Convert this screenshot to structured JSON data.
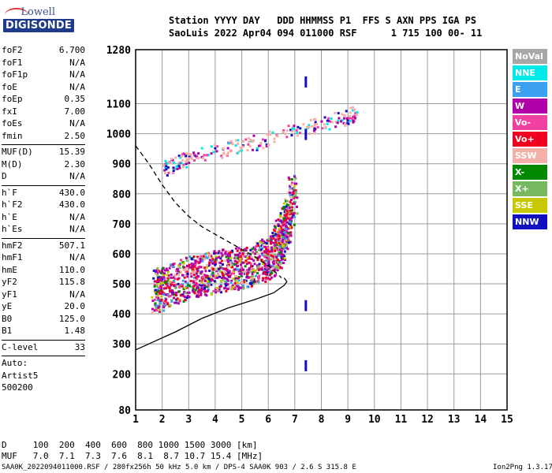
{
  "logo": {
    "top": "Lowell",
    "main": "DIGISONDE"
  },
  "header": {
    "line1": "Station YYYY DAY   DDD HHMMSS P1  FFS S AXN PPS IGA PS",
    "line2": "SaoLuis 2022 Apr04 094 011000 RSF      1 715 100 00- 11"
  },
  "params_a": [
    {
      "k": "foF2",
      "v": "6.700"
    },
    {
      "k": "foF1",
      "v": "N/A"
    },
    {
      "k": "foF1p",
      "v": "N/A"
    },
    {
      "k": "foE",
      "v": "N/A"
    },
    {
      "k": "foEp",
      "v": "0.35"
    },
    {
      "k": "fxI",
      "v": "7.00"
    },
    {
      "k": "foEs",
      "v": "N/A"
    },
    {
      "k": "fmin",
      "v": "2.50"
    }
  ],
  "params_b": [
    {
      "k": "MUF(D)",
      "v": "15.39"
    },
    {
      "k": "M(D)",
      "v": "2.30"
    },
    {
      "k": "D",
      "v": "N/A"
    }
  ],
  "params_c": [
    {
      "k": "h`F",
      "v": "430.0"
    },
    {
      "k": "h`F2",
      "v": "430.0"
    },
    {
      "k": "h`E",
      "v": "N/A"
    },
    {
      "k": "h`Es",
      "v": "N/A"
    }
  ],
  "params_d": [
    {
      "k": "hmF2",
      "v": "507.1"
    },
    {
      "k": "hmF1",
      "v": "N/A"
    },
    {
      "k": "hmE",
      "v": "110.0"
    },
    {
      "k": "yF2",
      "v": "115.8"
    },
    {
      "k": "yF1",
      "v": "N/A"
    },
    {
      "k": "yE",
      "v": "20.0"
    },
    {
      "k": "B0",
      "v": "125.0"
    },
    {
      "k": "B1",
      "v": "1.48"
    }
  ],
  "params_e": [
    {
      "k": "C-level",
      "v": "33"
    }
  ],
  "auto": [
    "Auto:",
    "Artist5",
    "500200"
  ],
  "legend": [
    {
      "label": "NoVal",
      "color": "#a8a8a8"
    },
    {
      "label": "NNE",
      "color": "#00e8e8"
    },
    {
      "label": "E",
      "color": "#3aa0f0"
    },
    {
      "label": "W",
      "color": "#b000a8"
    },
    {
      "label": "Vo-",
      "color": "#f040a0"
    },
    {
      "label": "Vo+",
      "color": "#f00020"
    },
    {
      "label": "SSW",
      "color": "#f4b0a8"
    },
    {
      "label": "X-",
      "color": "#008800"
    },
    {
      "label": "X+",
      "color": "#78b860"
    },
    {
      "label": "SSE",
      "color": "#c8c800"
    },
    {
      "label": "NNW",
      "color": "#1010c0"
    }
  ],
  "muf_table": {
    "row1": "D     100  200  400  600  800 1000 1500 3000 [km]",
    "row2": "MUF   7.0  7.1  7.3  7.6  8.1  8.7 10.7 15.4 [MHz]"
  },
  "footer": {
    "left": "SAA0K_2022094011000.RSF / 280fx256h 50 kHz 5.0 km / DPS-4 SAA0K 903 / 2.6 S 315.8 E",
    "right": "Ion2Png 1.3.17"
  },
  "chart_data": {
    "type": "scatter",
    "xlabel": "",
    "ylabel": "",
    "xlim": [
      1,
      15
    ],
    "ylim": [
      80,
      1280
    ],
    "x_ticks": [
      1,
      2,
      3,
      4,
      5,
      6,
      7,
      8,
      9,
      10,
      11,
      12,
      13,
      14,
      15
    ],
    "y_ticks": [
      80,
      200,
      300,
      400,
      500,
      600,
      700,
      800,
      900,
      1000,
      1100,
      1280
    ],
    "grid": true,
    "traces": [
      {
        "name": "O-trace",
        "points": [
          [
            1.7,
            430
          ],
          [
            2.0,
            450
          ],
          [
            2.5,
            470
          ],
          [
            3.0,
            482
          ],
          [
            3.5,
            492
          ],
          [
            4.0,
            500
          ],
          [
            4.5,
            508
          ],
          [
            5.0,
            516
          ],
          [
            5.5,
            528
          ],
          [
            6.0,
            548
          ],
          [
            6.3,
            580
          ],
          [
            6.5,
            620
          ],
          [
            6.7,
            680
          ],
          [
            6.9,
            760
          ]
        ]
      },
      {
        "name": "X-trace",
        "points": [
          [
            2.0,
            870
          ],
          [
            2.5,
            890
          ],
          [
            3.0,
            905
          ],
          [
            4.0,
            930
          ],
          [
            5.0,
            950
          ],
          [
            6.0,
            970
          ],
          [
            7.0,
            1000
          ],
          [
            8.0,
            1020
          ],
          [
            8.8,
            1040
          ],
          [
            9.3,
            1055
          ]
        ]
      },
      {
        "name": "profile",
        "points": [
          [
            1.0,
            280
          ],
          [
            1.5,
            300
          ],
          [
            2.5,
            340
          ],
          [
            3.5,
            385
          ],
          [
            4.5,
            420
          ],
          [
            5.5,
            448
          ],
          [
            6.2,
            470
          ],
          [
            6.6,
            495
          ],
          [
            6.7,
            507
          ],
          [
            6.6,
            520
          ]
        ]
      },
      {
        "name": "dashed",
        "points": [
          [
            1.0,
            960
          ],
          [
            1.5,
            900
          ],
          [
            2.0,
            830
          ],
          [
            2.5,
            770
          ],
          [
            3.0,
            725
          ],
          [
            3.5,
            690
          ],
          [
            4.0,
            665
          ],
          [
            4.5,
            640
          ],
          [
            5.0,
            615
          ],
          [
            5.5,
            590
          ],
          [
            6.0,
            560
          ],
          [
            6.5,
            520
          ]
        ]
      }
    ],
    "markers": [
      {
        "x": 7.4,
        "y": 1175
      },
      {
        "x": 7.4,
        "y": 1000
      },
      {
        "x": 7.4,
        "y": 430
      },
      {
        "x": 7.4,
        "y": 230
      }
    ]
  }
}
